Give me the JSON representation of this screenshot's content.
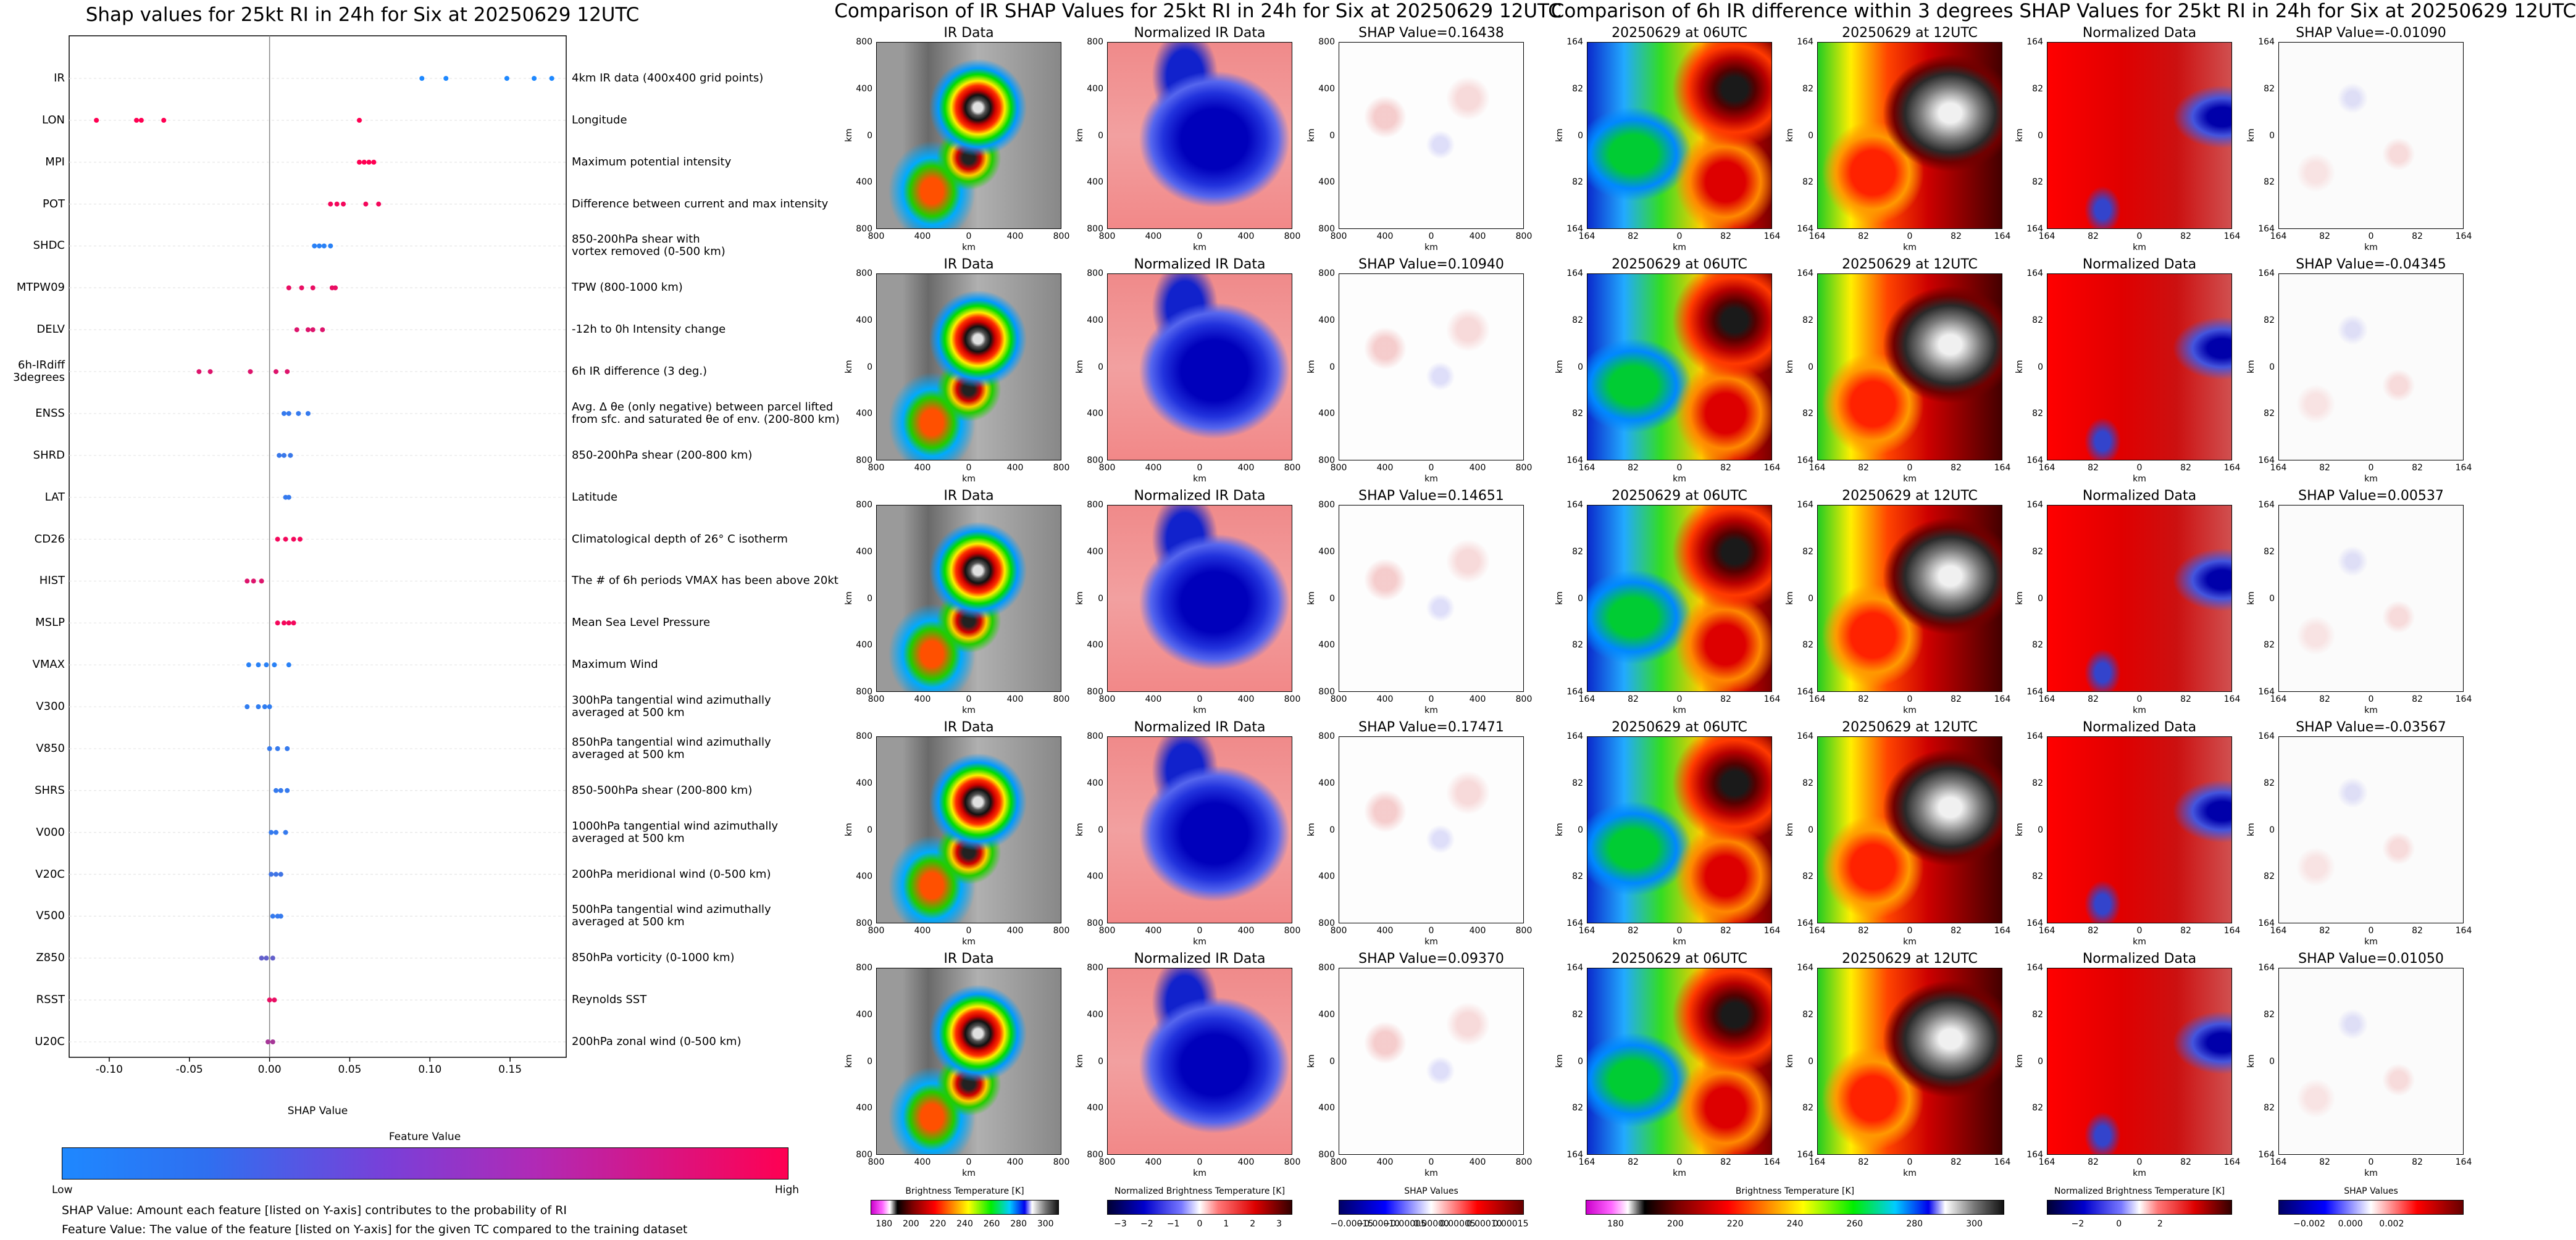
{
  "shap_chart": {
    "title": "Shap values for 25kt RI in 24h for Six at 20250629 12UTC",
    "xlabel": "SHAP Value",
    "xticks": [
      "-0.10",
      "-0.05",
      "0.00",
      "0.05",
      "0.10",
      "0.15"
    ],
    "legend_title": "Feature Value",
    "legend_low": "Low",
    "legend_high": "High",
    "note1": "SHAP Value: Amount each feature [listed on Y-axis] contributes to the probability of RI",
    "note2": "Feature Value: The value of the feature [listed on Y-axis] for the given TC compared to the training dataset"
  },
  "chart_data": [
    {
      "type": "scatter",
      "title": "Shap values for 25kt RI in 24h for Six at 20250629 12UTC",
      "xlabel": "SHAP Value",
      "xlim": [
        -0.125,
        0.185
      ],
      "features": [
        {
          "name": "IR",
          "desc": "4km IR data (400x400 grid points)",
          "shap": [
            0.095,
            0.11,
            0.148,
            0.165,
            0.176
          ],
          "feature_value": [
            0.0,
            0.0,
            0.0,
            0.0,
            0.0
          ]
        },
        {
          "name": "LON",
          "desc": "Longitude",
          "shap": [
            -0.108,
            -0.083,
            -0.08,
            -0.066,
            0.056
          ],
          "feature_value": [
            1.0,
            1.0,
            1.0,
            1.0,
            1.0
          ]
        },
        {
          "name": "MPI",
          "desc": "Maximum potential intensity",
          "shap": [
            0.056,
            0.059,
            0.062,
            0.065
          ],
          "feature_value": [
            1.0,
            1.0,
            1.0,
            1.0
          ]
        },
        {
          "name": "POT",
          "desc": "Difference between current and max intensity",
          "shap": [
            0.038,
            0.042,
            0.046,
            0.06,
            0.068
          ],
          "feature_value": [
            0.95,
            0.95,
            0.95,
            0.95,
            0.95
          ]
        },
        {
          "name": "SHDC",
          "desc": "850-200hPa shear with\nvortex removed (0-500 km)",
          "shap": [
            0.028,
            0.031,
            0.034,
            0.038
          ],
          "feature_value": [
            0.05,
            0.05,
            0.05,
            0.05
          ]
        },
        {
          "name": "MTPW09",
          "desc": "TPW (800-1000 km)",
          "shap": [
            0.012,
            0.02,
            0.027,
            0.039,
            0.041
          ],
          "feature_value": [
            0.9,
            0.9,
            0.9,
            0.9,
            0.9
          ]
        },
        {
          "name": "DELV",
          "desc": "-12h to 0h Intensity change",
          "shap": [
            0.017,
            0.024,
            0.027,
            0.033
          ],
          "feature_value": [
            0.85,
            0.85,
            0.85,
            0.85
          ]
        },
        {
          "name": "6h-IRdiff\n3degrees",
          "desc": "6h IR difference (3 deg.)",
          "shap": [
            -0.044,
            -0.037,
            -0.012,
            0.004,
            0.011
          ],
          "feature_value": [
            0.85,
            0.85,
            0.85,
            0.85,
            0.85
          ]
        },
        {
          "name": "ENSS",
          "desc": "Avg. Δ θe (only negative) between parcel lifted\nfrom sfc. and saturated θe of env. (200-800 km)",
          "shap": [
            0.009,
            0.012,
            0.018,
            0.024
          ],
          "feature_value": [
            0.1,
            0.1,
            0.1,
            0.1
          ]
        },
        {
          "name": "SHRD",
          "desc": "850-200hPa shear (200-800 km)",
          "shap": [
            0.006,
            0.009,
            0.013
          ],
          "feature_value": [
            0.12,
            0.12,
            0.12
          ]
        },
        {
          "name": "LAT",
          "desc": "Latitude",
          "shap": [
            0.01,
            0.012
          ],
          "feature_value": [
            0.1,
            0.1
          ]
        },
        {
          "name": "CD26",
          "desc": "Climatological depth of 26° C isotherm",
          "shap": [
            0.005,
            0.01,
            0.015,
            0.019
          ],
          "feature_value": [
            0.95,
            0.95,
            0.95,
            0.95
          ]
        },
        {
          "name": "HIST",
          "desc": "The # of 6h periods VMAX has been above 20kt",
          "shap": [
            -0.014,
            -0.01,
            -0.005
          ],
          "feature_value": [
            0.85,
            0.85,
            0.85
          ]
        },
        {
          "name": "MSLP",
          "desc": "Mean Sea Level Pressure",
          "shap": [
            0.005,
            0.009,
            0.012,
            0.015
          ],
          "feature_value": [
            0.95,
            0.95,
            0.95,
            0.95
          ]
        },
        {
          "name": "VMAX",
          "desc": "Maximum Wind",
          "shap": [
            -0.013,
            -0.007,
            -0.002,
            0.003,
            0.012
          ],
          "feature_value": [
            0.05,
            0.05,
            0.05,
            0.05,
            0.05
          ]
        },
        {
          "name": "V300",
          "desc": "300hPa tangential wind azimuthally\naveraged at 500 km",
          "shap": [
            -0.014,
            -0.007,
            -0.003,
            0.0
          ],
          "feature_value": [
            0.08,
            0.08,
            0.08,
            0.08
          ]
        },
        {
          "name": "V850",
          "desc": "850hPa tangential wind azimuthally\naveraged at 500 km",
          "shap": [
            0.0,
            0.005,
            0.011
          ],
          "feature_value": [
            0.1,
            0.1,
            0.1
          ]
        },
        {
          "name": "SHRS",
          "desc": "850-500hPa shear (200-800 km)",
          "shap": [
            0.004,
            0.007,
            0.011
          ],
          "feature_value": [
            0.1,
            0.1,
            0.1
          ]
        },
        {
          "name": "V000",
          "desc": "1000hPa tangential wind azimuthally\naveraged at 500 km",
          "shap": [
            0.001,
            0.004,
            0.01
          ],
          "feature_value": [
            0.1,
            0.1,
            0.1
          ]
        },
        {
          "name": "V20C",
          "desc": "200hPa meridional wind (0-500 km)",
          "shap": [
            0.001,
            0.004,
            0.007
          ],
          "feature_value": [
            0.15,
            0.15,
            0.15
          ]
        },
        {
          "name": "V500",
          "desc": "500hPa tangential wind azimuthally\naveraged at 500 km",
          "shap": [
            0.002,
            0.005,
            0.007
          ],
          "feature_value": [
            0.1,
            0.1,
            0.1
          ]
        },
        {
          "name": "Z850",
          "desc": "850hPa vorticity (0-1000 km)",
          "shap": [
            -0.005,
            -0.002,
            0.002
          ],
          "feature_value": [
            0.3,
            0.3,
            0.3
          ]
        },
        {
          "name": "RSST",
          "desc": "Reynolds SST",
          "shap": [
            0.0,
            0.003
          ],
          "feature_value": [
            0.9,
            0.9
          ]
        },
        {
          "name": "U20C",
          "desc": "200hPa zonal wind (0-500 km)",
          "shap": [
            -0.001,
            0.002
          ],
          "feature_value": [
            0.6,
            0.6
          ]
        }
      ]
    },
    {
      "type": "heatmap",
      "title": "Comparison of IR SHAP Values for 25kt RI in 24h for Six at 20250629 12UTC",
      "columns": [
        "IR Data",
        "Normalized IR Data"
      ],
      "shap_titles": [
        "SHAP Value=0.16438",
        "SHAP Value=0.10940",
        "SHAP Value=0.14651",
        "SHAP Value=0.17471",
        "SHAP Value=0.09370"
      ],
      "axis_label": "km",
      "xticks": [
        "800",
        "400",
        "0",
        "400",
        "800"
      ],
      "yticks": [
        "800",
        "400",
        "0",
        "400",
        "800"
      ],
      "colorbars": [
        {
          "label": "Brightness Temperature [K]",
          "ticks": [
            "180",
            "200",
            "220",
            "240",
            "260",
            "280",
            "300"
          ]
        },
        {
          "label": "Normalized Brightness Temperature [K]",
          "ticks": [
            "−3",
            "−2",
            "−1",
            "0",
            "1",
            "2",
            "3"
          ]
        },
        {
          "label": "SHAP Values",
          "ticks": [
            "−0.00015",
            "−0.00010",
            "−0.00005",
            "0.00000",
            "0.00005",
            "0.00010",
            "0.00015"
          ]
        }
      ]
    },
    {
      "type": "heatmap",
      "title": "Comparison of 6h IR difference within 3 degrees SHAP Values for 25kt RI in 24h for Six at 20250629 12UTC",
      "columns": [
        "20250629 at 06UTC",
        "20250629 at 12UTC",
        "Normalized Data"
      ],
      "shap_titles": [
        "SHAP Value=-0.01090",
        "SHAP Value=-0.04345",
        "SHAP Value=0.00537",
        "SHAP Value=-0.03567",
        "SHAP Value=0.01050"
      ],
      "axis_label": "km",
      "xticks": [
        "164",
        "82",
        "0",
        "82",
        "164"
      ],
      "yticks": [
        "164",
        "82",
        "0",
        "82",
        "164"
      ],
      "colorbars": [
        {
          "label": "Brightness Temperature [K]",
          "ticks": [
            "180",
            "200",
            "220",
            "240",
            "260",
            "280",
            "300"
          ]
        },
        {
          "label": "Normalized Brightness Temperature [K]",
          "ticks": [
            "−2",
            "0",
            "2"
          ]
        },
        {
          "label": "SHAP Values",
          "ticks": [
            "−0.002",
            "0.000",
            "0.002"
          ]
        }
      ]
    }
  ],
  "colors": {
    "feature_low": "#1e88ff",
    "feature_high": "#ff0052"
  }
}
